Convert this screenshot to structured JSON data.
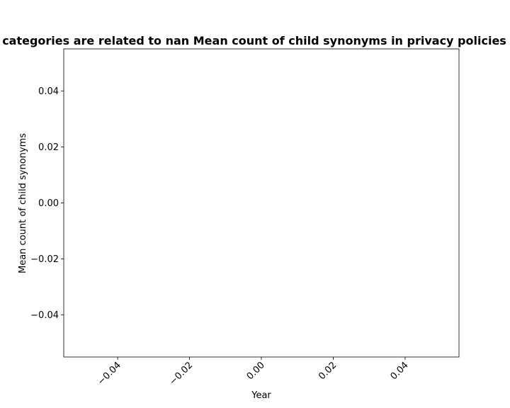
{
  "chart_data": {
    "type": "line",
    "title": "categories are related to nan Mean count of child synonyms in privacy policies",
    "xlabel": "Year",
    "ylabel": "Mean count of child synonyms",
    "xlim": [
      -0.055,
      0.055
    ],
    "ylim": [
      -0.055,
      0.055
    ],
    "x_ticks": [
      -0.04,
      -0.02,
      0.0,
      0.02,
      0.04
    ],
    "x_tick_labels": [
      "−0.04",
      "−0.02",
      "0.00",
      "0.02",
      "0.04"
    ],
    "y_ticks": [
      0.04,
      0.02,
      0.0,
      -0.02,
      -0.04
    ],
    "y_tick_labels": [
      "0.04",
      "0.02",
      "0.00",
      "−0.02",
      "−0.04"
    ],
    "series": [],
    "grid": false,
    "legend": "none"
  }
}
